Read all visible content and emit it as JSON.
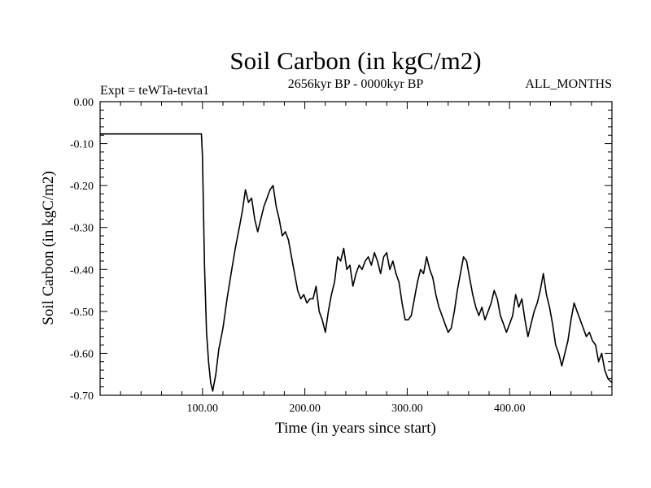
{
  "chart_data": {
    "type": "line",
    "title": "Soil Carbon (in kgC/m2)",
    "subtitle": "2656kyr BP - 0000kyr BP",
    "experiment_label": "Expt = teWTa-tevta1",
    "months_label": "ALL_MONTHS",
    "xlabel": "Time (in years since start)",
    "ylabel": "Soil Carbon (in kgC/m2)",
    "xlim": [
      0,
      500
    ],
    "ylim": [
      -0.7,
      0.0
    ],
    "x_ticks": [
      100,
      200,
      300,
      400
    ],
    "x_tick_labels": [
      "100.00",
      "200.00",
      "300.00",
      "400.00"
    ],
    "x_minor_step": 20,
    "y_ticks": [
      0.0,
      -0.1,
      -0.2,
      -0.3,
      -0.4,
      -0.5,
      -0.6,
      -0.7
    ],
    "y_tick_labels": [
      "0.00",
      "-0.10",
      "-0.20",
      "-0.30",
      "-0.40",
      "-0.50",
      "-0.60",
      "-0.70"
    ],
    "y_minor_step": 0.02,
    "grid": false,
    "line_color": "#000000",
    "series": [
      {
        "name": "Soil Carbon",
        "x": [
          0,
          99,
          100,
          102,
          104,
          106,
          108,
          110,
          113,
          116,
          120,
          124,
          128,
          132,
          136,
          139,
          142,
          145,
          148,
          151,
          154,
          157,
          160,
          163,
          166,
          169,
          172,
          175,
          178,
          181,
          184,
          187,
          190,
          193,
          196,
          199,
          202,
          205,
          208,
          211,
          214,
          217,
          220,
          223,
          226,
          229,
          232,
          235,
          238,
          241,
          244,
          247,
          250,
          253,
          256,
          259,
          262,
          265,
          268,
          271,
          274,
          277,
          280,
          283,
          286,
          289,
          292,
          295,
          298,
          301,
          304,
          307,
          310,
          313,
          316,
          319,
          322,
          325,
          328,
          331,
          334,
          337,
          340,
          343,
          346,
          349,
          352,
          355,
          358,
          361,
          364,
          367,
          370,
          373,
          376,
          379,
          382,
          385,
          388,
          391,
          394,
          397,
          400,
          403,
          406,
          409,
          412,
          415,
          418,
          421,
          424,
          427,
          430,
          433,
          436,
          439,
          442,
          445,
          448,
          451,
          454,
          457,
          460,
          463,
          466,
          469,
          472,
          475,
          478,
          481,
          484,
          487,
          490,
          493,
          496,
          500
        ],
        "y": [
          -0.077,
          -0.077,
          -0.13,
          -0.39,
          -0.55,
          -0.62,
          -0.67,
          -0.69,
          -0.65,
          -0.59,
          -0.54,
          -0.47,
          -0.41,
          -0.35,
          -0.3,
          -0.26,
          -0.21,
          -0.24,
          -0.23,
          -0.28,
          -0.31,
          -0.28,
          -0.25,
          -0.23,
          -0.21,
          -0.2,
          -0.25,
          -0.28,
          -0.32,
          -0.31,
          -0.33,
          -0.37,
          -0.41,
          -0.45,
          -0.47,
          -0.46,
          -0.48,
          -0.47,
          -0.47,
          -0.44,
          -0.5,
          -0.52,
          -0.55,
          -0.5,
          -0.46,
          -0.43,
          -0.37,
          -0.38,
          -0.35,
          -0.4,
          -0.39,
          -0.44,
          -0.41,
          -0.39,
          -0.4,
          -0.38,
          -0.37,
          -0.39,
          -0.36,
          -0.38,
          -0.41,
          -0.37,
          -0.36,
          -0.4,
          -0.38,
          -0.41,
          -0.43,
          -0.48,
          -0.52,
          -0.52,
          -0.51,
          -0.47,
          -0.43,
          -0.4,
          -0.41,
          -0.37,
          -0.4,
          -0.42,
          -0.46,
          -0.49,
          -0.51,
          -0.53,
          -0.55,
          -0.54,
          -0.5,
          -0.45,
          -0.41,
          -0.37,
          -0.38,
          -0.42,
          -0.46,
          -0.49,
          -0.51,
          -0.49,
          -0.52,
          -0.5,
          -0.48,
          -0.45,
          -0.47,
          -0.51,
          -0.53,
          -0.55,
          -0.53,
          -0.51,
          -0.46,
          -0.49,
          -0.47,
          -0.52,
          -0.56,
          -0.53,
          -0.5,
          -0.48,
          -0.45,
          -0.41,
          -0.46,
          -0.49,
          -0.53,
          -0.58,
          -0.6,
          -0.63,
          -0.6,
          -0.57,
          -0.52,
          -0.48,
          -0.5,
          -0.52,
          -0.54,
          -0.56,
          -0.55,
          -0.57,
          -0.58,
          -0.62,
          -0.6,
          -0.64,
          -0.66,
          -0.67
        ]
      }
    ]
  }
}
